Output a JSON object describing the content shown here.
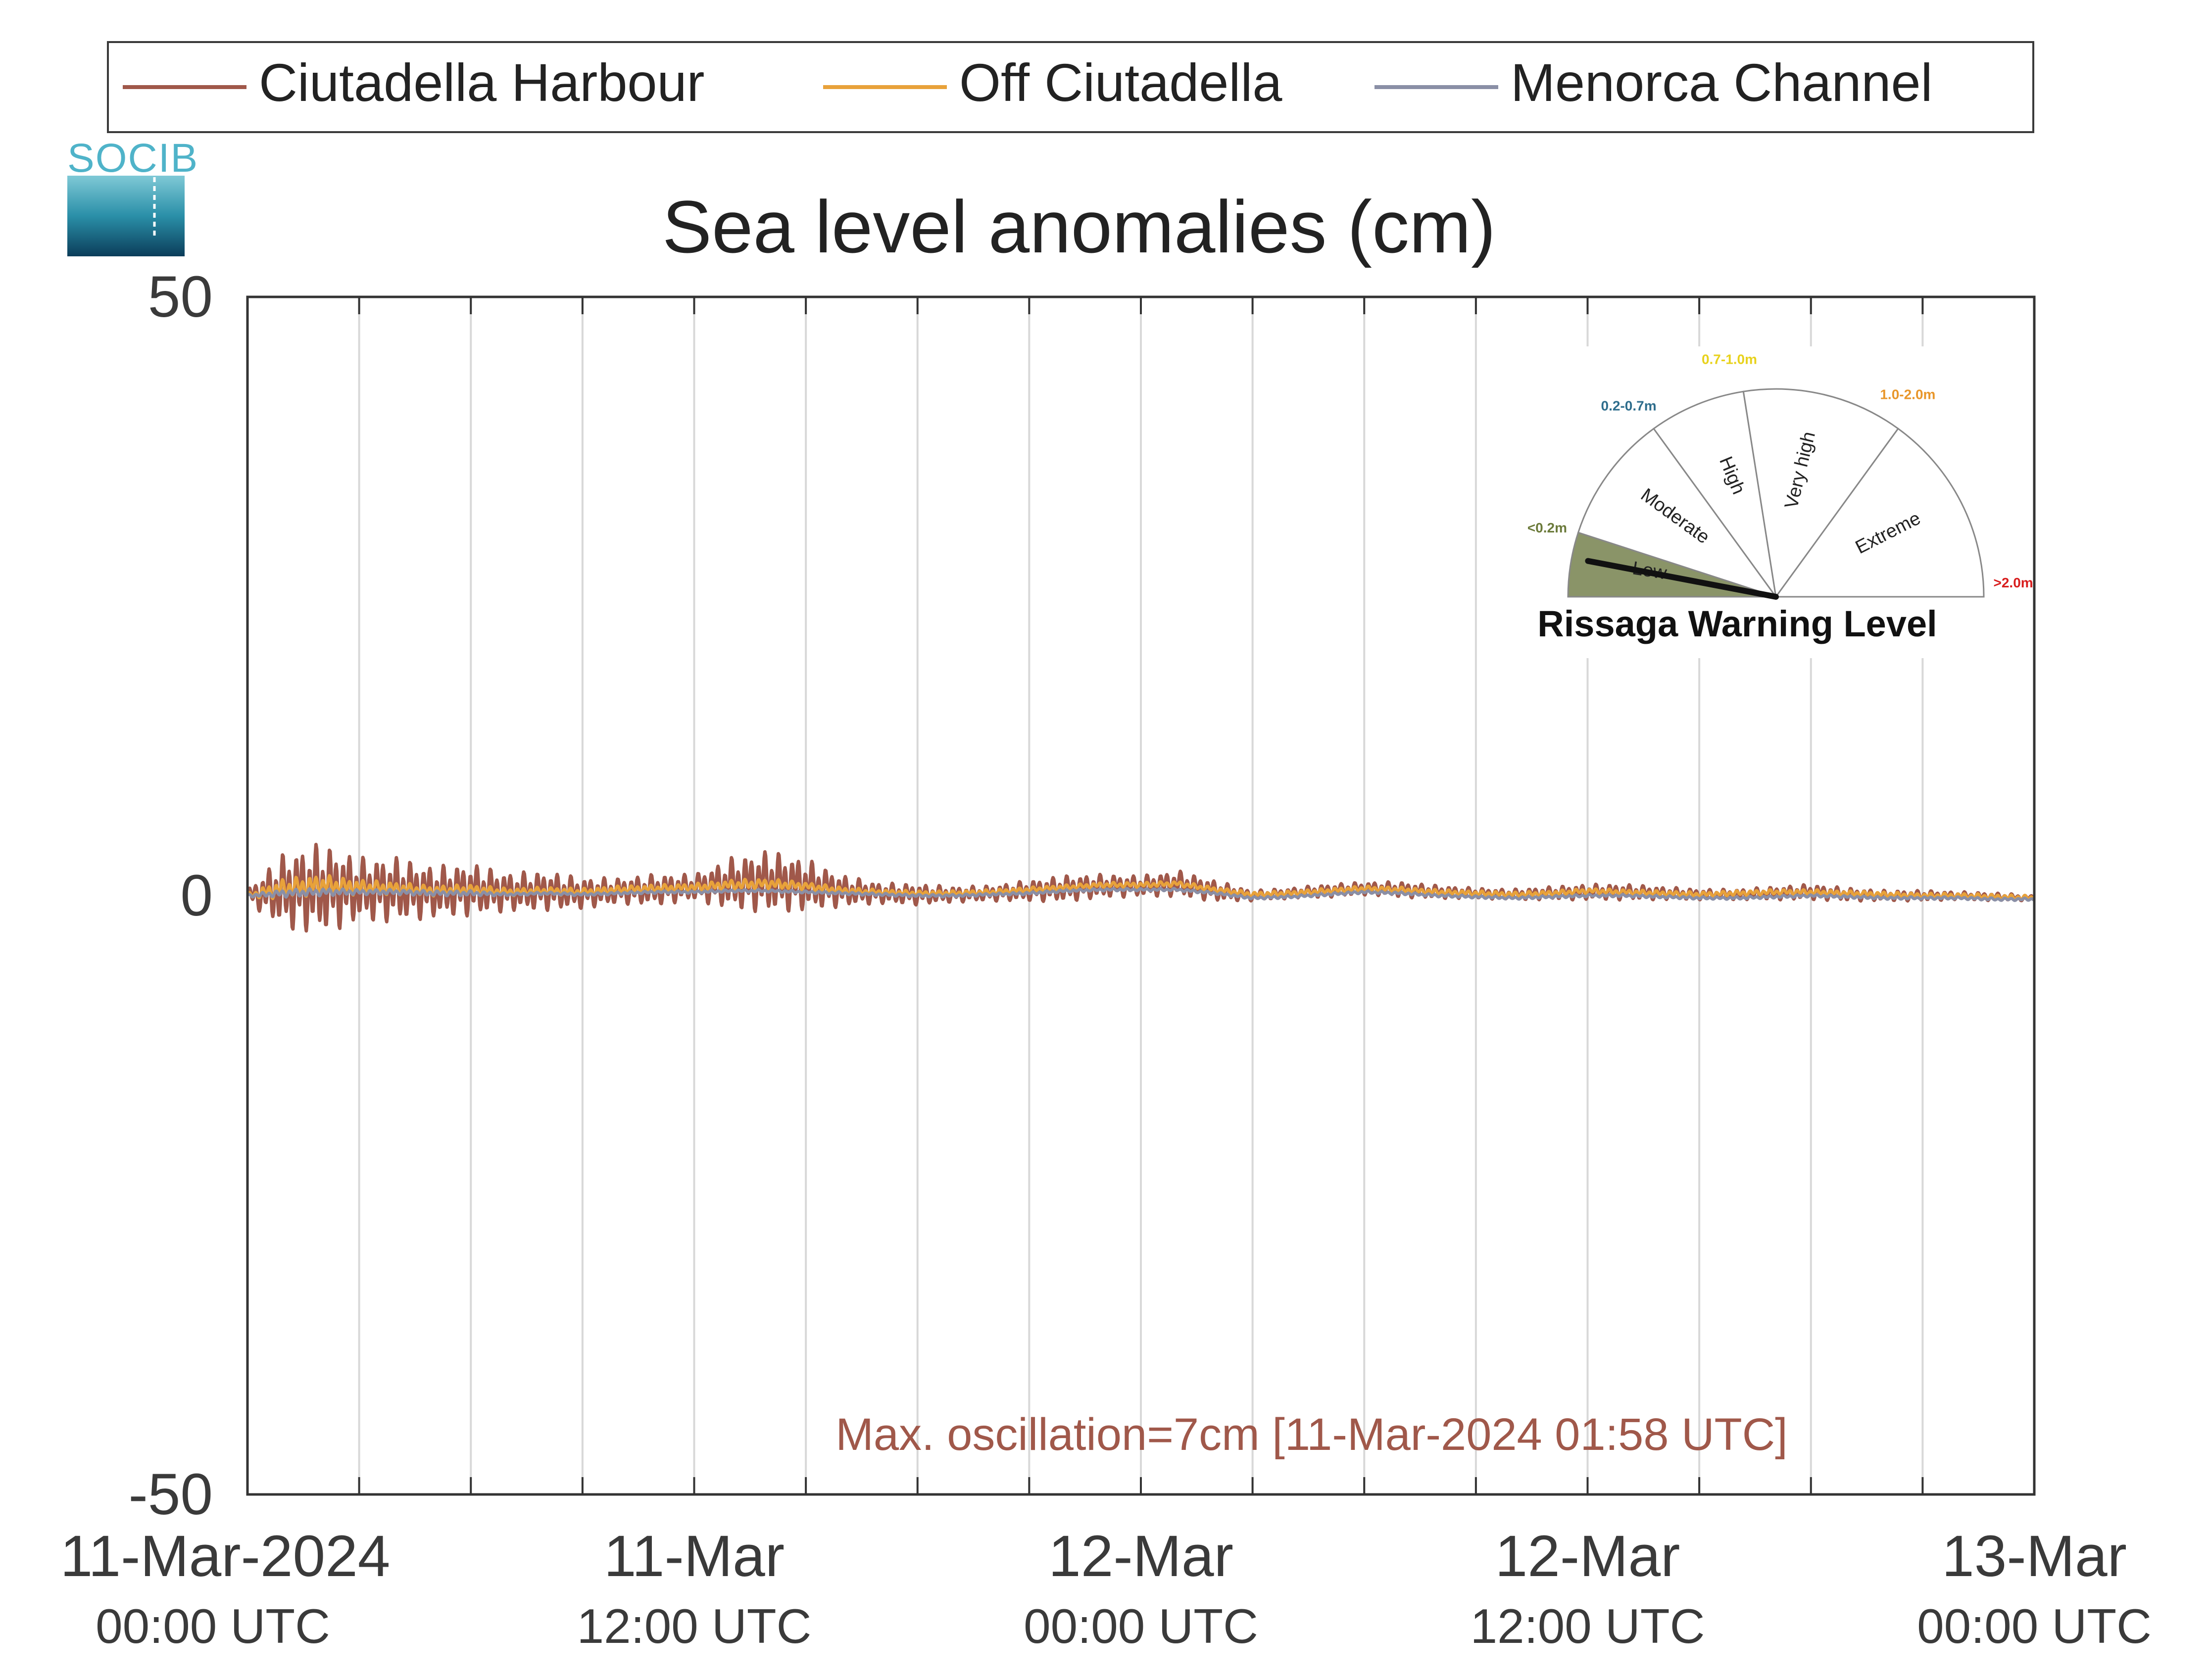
{
  "logo": {
    "text": "SOCIB"
  },
  "chart_data": {
    "type": "line",
    "title": "Sea level anomalies (cm)",
    "xlabel": "",
    "ylabel": "",
    "ylim": [
      -50,
      50
    ],
    "yticks": [
      50,
      0,
      -50
    ],
    "yticklabels": [
      "50",
      "0",
      "-50"
    ],
    "xrange_hours": [
      0,
      48
    ],
    "xticks": [
      {
        "hours": 0,
        "line1": "11-Mar-2024",
        "line2": "00:00 UTC"
      },
      {
        "hours": 12,
        "line1": "11-Mar",
        "line2": "12:00 UTC"
      },
      {
        "hours": 24,
        "line1": "12-Mar",
        "line2": "00:00 UTC"
      },
      {
        "hours": 36,
        "line1": "12-Mar",
        "line2": "12:00 UTC"
      },
      {
        "hours": 48,
        "line1": "13-Mar",
        "line2": "00:00 UTC"
      }
    ],
    "grid": true,
    "vertical_gridlines_hours": [
      3,
      6,
      9,
      12,
      15,
      18,
      21,
      24,
      27,
      30,
      33,
      36,
      39,
      42,
      45
    ],
    "legend": {
      "placement": "top",
      "entries": [
        {
          "name": "Ciutadella Harbour",
          "color": "#a0584a"
        },
        {
          "name": "Off Ciutadella",
          "color": "#e8a23a"
        },
        {
          "name": "Menorca Channel",
          "color": "#8a8fa6"
        }
      ]
    },
    "series": [
      {
        "name": "Ciutadella Harbour",
        "color": "#a0584a",
        "x_hours": [
          0,
          1,
          2,
          3,
          4,
          5,
          6,
          7,
          8,
          9,
          10,
          11,
          12,
          13,
          14,
          15,
          16,
          17,
          18,
          19,
          20,
          21,
          22,
          23,
          24,
          25,
          26,
          27,
          28,
          29,
          30,
          31,
          32,
          33,
          34,
          35,
          36,
          37,
          38,
          39,
          40,
          41,
          42,
          43,
          44,
          45,
          46,
          47,
          48
        ],
        "mean": [
          0,
          0.4,
          0.6,
          0.5,
          0.5,
          0.3,
          0.5,
          0.3,
          0.4,
          0.2,
          0.4,
          0.5,
          0.7,
          1.0,
          1.2,
          0.9,
          0.4,
          0.2,
          0.1,
          0.1,
          0.2,
          0.4,
          0.6,
          0.8,
          0.8,
          1.0,
          0.4,
          0,
          0.2,
          0.4,
          0.6,
          0.5,
          0.3,
          0.2,
          0.1,
          0.2,
          0.3,
          0.3,
          0.2,
          0.1,
          0.1,
          0.2,
          0.3,
          0.1,
          0,
          0,
          0,
          -0.1,
          -0.2
        ],
        "amplitude": [
          0.5,
          3.0,
          3.5,
          2.5,
          2.5,
          2.0,
          2.0,
          1.5,
          1.5,
          1.2,
          1.0,
          1.2,
          1.0,
          2.0,
          2.4,
          2.0,
          1.2,
          0.8,
          0.8,
          0.6,
          0.6,
          0.8,
          1.0,
          0.9,
          0.8,
          1.0,
          0.8,
          0.4,
          0.4,
          0.5,
          0.5,
          0.6,
          0.5,
          0.4,
          0.4,
          0.5,
          0.6,
          0.6,
          0.5,
          0.4,
          0.4,
          0.5,
          0.6,
          0.5,
          0.4,
          0.4,
          0.3,
          0.3,
          0.2
        ]
      },
      {
        "name": "Off Ciutadella",
        "color": "#e8a23a",
        "x_hours": [
          0,
          1,
          2,
          3,
          4,
          5,
          6,
          7,
          8,
          9,
          10,
          11,
          12,
          13,
          14,
          15,
          16,
          17,
          18,
          19,
          20,
          21,
          22,
          23,
          24,
          25,
          26,
          27,
          28,
          29,
          30,
          31,
          32,
          33,
          34,
          35,
          36,
          37,
          38,
          39,
          40,
          41,
          42,
          43,
          44,
          45,
          46,
          47,
          48
        ],
        "mean": [
          0,
          0.6,
          0.9,
          0.7,
          0.6,
          0.4,
          0.5,
          0.3,
          0.4,
          0.3,
          0.5,
          0.6,
          0.7,
          0.9,
          1.0,
          0.8,
          0.4,
          0.3,
          0.2,
          0.2,
          0.3,
          0.5,
          0.7,
          0.9,
          0.9,
          1.0,
          0.5,
          0.1,
          0.2,
          0.4,
          0.6,
          0.5,
          0.3,
          0.2,
          0.1,
          0.2,
          0.4,
          0.3,
          0.2,
          0.1,
          0.2,
          0.3,
          0.3,
          0.2,
          0.1,
          0,
          0,
          -0.1,
          -0.2
        ],
        "amplitude": [
          0.2,
          0.8,
          0.8,
          0.6,
          0.5,
          0.4,
          0.4,
          0.3,
          0.3,
          0.3,
          0.3,
          0.3,
          0.3,
          0.4,
          0.4,
          0.3,
          0.3,
          0.2,
          0.2,
          0.2,
          0.2,
          0.2,
          0.2,
          0.2,
          0.2,
          0.2,
          0.2,
          0.2,
          0.2,
          0.2,
          0.2,
          0.2,
          0.2,
          0.2,
          0.2,
          0.2,
          0.2,
          0.2,
          0.2,
          0.2,
          0.2,
          0.2,
          0.2,
          0.2,
          0.2,
          0.2,
          0.2,
          0.2,
          0.2
        ]
      },
      {
        "name": "Menorca Channel",
        "color": "#8a8fa6",
        "x_hours": [
          0,
          1,
          2,
          3,
          4,
          5,
          6,
          7,
          8,
          9,
          10,
          11,
          12,
          13,
          14,
          15,
          16,
          17,
          18,
          19,
          20,
          21,
          22,
          23,
          24,
          25,
          26,
          27,
          28,
          29,
          30,
          31,
          32,
          33,
          34,
          35,
          36,
          37,
          38,
          39,
          40,
          41,
          42,
          43,
          44,
          45,
          46,
          47,
          48
        ],
        "mean": [
          0,
          0.2,
          0.3,
          0.3,
          0.3,
          0.2,
          0.2,
          0.1,
          0.2,
          0.1,
          0.2,
          0.3,
          0.3,
          0.4,
          0.4,
          0.3,
          0.2,
          0.1,
          0,
          0,
          0.1,
          0.2,
          0.4,
          0.5,
          0.5,
          0.5,
          0.2,
          -0.2,
          -0.1,
          0.1,
          0.3,
          0.2,
          0,
          -0.1,
          -0.2,
          -0.1,
          0,
          0,
          -0.1,
          -0.2,
          -0.2,
          -0.1,
          0,
          -0.1,
          -0.2,
          -0.2,
          -0.2,
          -0.3,
          -0.3
        ],
        "amplitude": [
          0.1,
          0.3,
          0.3,
          0.2,
          0.2,
          0.2,
          0.2,
          0.1,
          0.1,
          0.1,
          0.1,
          0.1,
          0.1,
          0.1,
          0.1,
          0.1,
          0.1,
          0.1,
          0.1,
          0.1,
          0.1,
          0.1,
          0.1,
          0.1,
          0.1,
          0.1,
          0.1,
          0.1,
          0.1,
          0.1,
          0.1,
          0.1,
          0.1,
          0.1,
          0.1,
          0.1,
          0.1,
          0.1,
          0.1,
          0.1,
          0.1,
          0.1,
          0.1,
          0.1,
          0.1,
          0.1,
          0.1,
          0.1,
          0.1
        ]
      }
    ],
    "annotation": {
      "text": "Max. oscillation=7cm [11-Mar-2024 01:58 UTC]",
      "color": "#a0584a"
    },
    "gauge": {
      "title": "Rissaga Warning Level",
      "current_level": "Low",
      "needle_fraction": 0.06,
      "levels": [
        {
          "name": "Low",
          "range": "<0.2m",
          "color": "#6b7a3a"
        },
        {
          "name": "Moderate",
          "range": "0.2-0.7m",
          "color": "#2e6d8c"
        },
        {
          "name": "High",
          "range": "0.7-1.0m",
          "color": "#e8d21c"
        },
        {
          "name": "Very high",
          "range": "1.0-2.0m",
          "color": "#e8962a"
        },
        {
          "name": "Extreme",
          "range": ">2.0m",
          "color": "#d81e1e"
        }
      ],
      "active_fill": "#8a9468"
    }
  }
}
